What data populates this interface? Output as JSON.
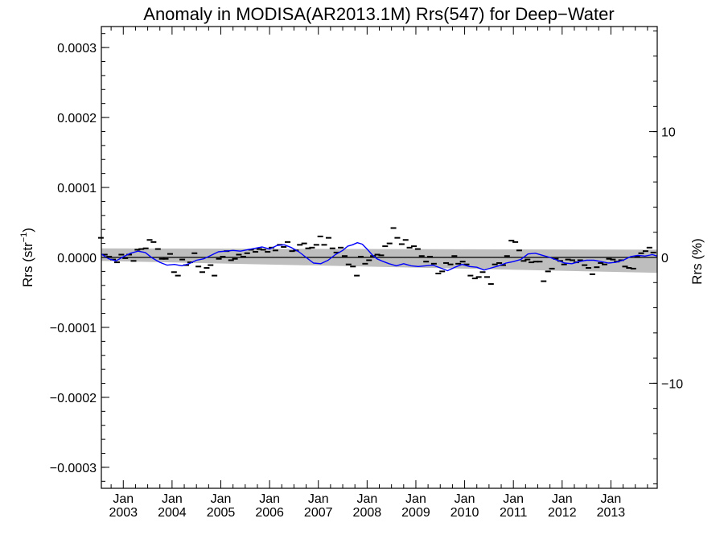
{
  "chart_data": {
    "type": "line",
    "title": "Anomaly in MODISA(AR2013.1M) Rrs(547) for Deep−Water",
    "ylabel_base": "Rrs (str",
    "ylabel_sup": "−1",
    "ylabel_close": ")",
    "y2label": "Rrs (%)",
    "xlim": [
      2002.55,
      2013.95
    ],
    "ylim": [
      -0.00033,
      0.00033
    ],
    "y2lim": [
      -18.35,
      18.35
    ],
    "yticks": [
      {
        "v": 0.0003,
        "label": "0.0003"
      },
      {
        "v": 0.0002,
        "label": "0.0002"
      },
      {
        "v": 0.0001,
        "label": "0.0001"
      },
      {
        "v": 0.0,
        "label": "0.0000"
      },
      {
        "v": -0.0001,
        "label": "−0.0001"
      },
      {
        "v": -0.0002,
        "label": "−0.0002"
      },
      {
        "v": -0.0003,
        "label": "−0.0003"
      }
    ],
    "y2ticks": [
      {
        "v": 10,
        "label": "10"
      },
      {
        "v": 0,
        "label": "0"
      },
      {
        "v": -10,
        "label": "−10"
      }
    ],
    "xticks": [
      {
        "v": 2003.0,
        "month": "Jan",
        "year": "2003"
      },
      {
        "v": 2004.0,
        "month": "Jan",
        "year": "2004"
      },
      {
        "v": 2005.0,
        "month": "Jan",
        "year": "2005"
      },
      {
        "v": 2006.0,
        "month": "Jan",
        "year": "2006"
      },
      {
        "v": 2007.0,
        "month": "Jan",
        "year": "2007"
      },
      {
        "v": 2008.0,
        "month": "Jan",
        "year": "2008"
      },
      {
        "v": 2009.0,
        "month": "Jan",
        "year": "2009"
      },
      {
        "v": 2010.0,
        "month": "Jan",
        "year": "2010"
      },
      {
        "v": 2011.0,
        "month": "Jan",
        "year": "2011"
      },
      {
        "v": 2012.0,
        "month": "Jan",
        "year": "2012"
      },
      {
        "v": 2013.0,
        "month": "Jan",
        "year": "2013"
      }
    ],
    "band": {
      "x": [
        2002.55,
        2013.95
      ],
      "upper": [
        1.3e-05,
        1.1e-05
      ],
      "lower": [
        -5e-06,
        -2.2e-05
      ],
      "color": "#bebebe"
    },
    "zero_line": 0.0,
    "monthly_points": {
      "color": "#000000",
      "x": [
        2002.54,
        2002.62,
        2002.71,
        2002.79,
        2002.87,
        2002.96,
        2003.04,
        2003.12,
        2003.21,
        2003.29,
        2003.37,
        2003.46,
        2003.54,
        2003.62,
        2003.71,
        2003.79,
        2003.87,
        2003.96,
        2004.04,
        2004.12,
        2004.21,
        2004.29,
        2004.37,
        2004.46,
        2004.54,
        2004.62,
        2004.71,
        2004.79,
        2004.87,
        2004.96,
        2005.04,
        2005.12,
        2005.21,
        2005.29,
        2005.37,
        2005.46,
        2005.54,
        2005.62,
        2005.71,
        2005.79,
        2005.87,
        2005.96,
        2006.04,
        2006.12,
        2006.21,
        2006.29,
        2006.37,
        2006.46,
        2006.54,
        2006.62,
        2006.71,
        2006.79,
        2006.87,
        2006.96,
        2007.04,
        2007.12,
        2007.21,
        2007.29,
        2007.37,
        2007.46,
        2007.54,
        2007.62,
        2007.71,
        2007.79,
        2007.87,
        2007.96,
        2008.04,
        2008.12,
        2008.21,
        2008.29,
        2008.37,
        2008.46,
        2008.54,
        2008.62,
        2008.71,
        2008.79,
        2008.87,
        2008.96,
        2009.04,
        2009.12,
        2009.21,
        2009.29,
        2009.37,
        2009.46,
        2009.54,
        2009.62,
        2009.71,
        2009.79,
        2009.87,
        2009.96,
        2010.04,
        2010.12,
        2010.21,
        2010.29,
        2010.37,
        2010.46,
        2010.54,
        2010.62,
        2010.71,
        2010.79,
        2010.87,
        2010.96,
        2011.04,
        2011.12,
        2011.21,
        2011.29,
        2011.37,
        2011.46,
        2011.54,
        2011.62,
        2011.71,
        2011.79,
        2011.87,
        2011.96,
        2012.04,
        2012.12,
        2012.21,
        2012.29,
        2012.37,
        2012.46,
        2012.54,
        2012.62,
        2012.71,
        2012.79,
        2012.87,
        2012.96,
        2013.04,
        2013.12,
        2013.21,
        2013.29,
        2013.37,
        2013.46,
        2013.54,
        2013.62,
        2013.71,
        2013.79,
        2013.87
      ],
      "y": [
        2.8e-05,
        4e-06,
        1e-06,
        -3e-06,
        -7e-06,
        4e-06,
        -1e-06,
        4e-06,
        -5e-06,
        1.1e-05,
        1.2e-05,
        1.3e-05,
        2.5e-05,
        2.2e-05,
        1.2e-05,
        -2e-06,
        -2e-06,
        5e-06,
        -2.1e-05,
        -2.6e-05,
        -3e-06,
        -1.1e-05,
        -7e-06,
        6e-06,
        -1.3e-05,
        -2.1e-05,
        -1.5e-05,
        -1.1e-05,
        -2.6e-05,
        -2e-06,
        1e-06,
        9e-06,
        -4e-06,
        -2e-06,
        4e-06,
        1e-06,
        6e-06,
        1.1e-05,
        8e-06,
        1.2e-05,
        1.1e-05,
        8e-06,
        1.4e-05,
        1e-05,
        1.8e-05,
        1.5e-05,
        2.2e-05,
        9e-06,
        1e-05,
        1.8e-05,
        2e-05,
        1.3e-05,
        1.4e-05,
        1.8e-05,
        3e-05,
        1.8e-05,
        2.8e-05,
        1.3e-05,
        7e-06,
        1.4e-05,
        2e-06,
        -1e-05,
        -1.3e-05,
        -2.6e-05,
        1e-06,
        -9e-06,
        -4e-06,
        2e-06,
        4e-06,
        3e-06,
        1.6e-05,
        2e-05,
        4.2e-05,
        2.8e-05,
        1.9e-05,
        2.5e-05,
        1.4e-05,
        1.6e-05,
        1.2e-05,
        2e-06,
        -6e-06,
        1e-06,
        -9e-06,
        -2.3e-05,
        -2e-05,
        -8e-06,
        -1e-05,
        2e-06,
        -9e-06,
        -6e-06,
        -1e-05,
        -2.6e-05,
        -3e-05,
        -2.8e-05,
        -2.1e-05,
        -2.8e-05,
        -3.8e-05,
        -1e-05,
        -8e-06,
        -1.1e-05,
        2e-06,
        2.4e-05,
        2.2e-05,
        1e-05,
        -5e-06,
        -3e-06,
        -7e-06,
        -6e-06,
        -6e-06,
        -3.4e-05,
        -2e-05,
        -1.6e-05,
        -2e-06,
        -5e-06,
        -1e-05,
        -3e-06,
        -4e-06,
        -7e-06,
        -4e-06,
        -1.1e-05,
        -1.5e-05,
        -2.4e-05,
        -1.4e-05,
        -8e-06,
        -1e-05,
        -2e-06,
        -3e-06,
        -6e-06,
        -4e-06,
        -1.3e-05,
        -1.5e-05,
        -1.6e-05,
        1e-06,
        6e-06,
        9e-06,
        1.4e-05,
        7e-06
      ]
    },
    "smoothed_series": {
      "color": "#0000ff",
      "x": [
        2002.55,
        2002.7,
        2002.85,
        2003.0,
        2003.15,
        2003.3,
        2003.45,
        2003.6,
        2003.75,
        2003.9,
        2004.05,
        2004.2,
        2004.35,
        2004.5,
        2004.65,
        2004.8,
        2004.95,
        2005.1,
        2005.25,
        2005.4,
        2005.55,
        2005.7,
        2005.85,
        2006.0,
        2006.15,
        2006.3,
        2006.45,
        2006.6,
        2006.75,
        2006.9,
        2007.05,
        2007.2,
        2007.35,
        2007.5,
        2007.6,
        2007.7,
        2007.8,
        2007.9,
        2008.0,
        2008.1,
        2008.2,
        2008.3,
        2008.45,
        2008.6,
        2008.75,
        2008.9,
        2009.05,
        2009.2,
        2009.35,
        2009.5,
        2009.65,
        2009.8,
        2009.95,
        2010.1,
        2010.25,
        2010.4,
        2010.55,
        2010.7,
        2010.85,
        2011.0,
        2011.15,
        2011.3,
        2011.45,
        2011.6,
        2011.75,
        2011.9,
        2012.05,
        2012.2,
        2012.35,
        2012.5,
        2012.65,
        2012.8,
        2012.95,
        2013.1,
        2013.25,
        2013.4,
        2013.55,
        2013.7,
        2013.85,
        2013.95
      ],
      "y": [
        5e-06,
        -2e-06,
        -5e-06,
        1e-06,
        6e-06,
        9e-06,
        7e-06,
        -1e-06,
        -7e-06,
        -1.1e-05,
        -1e-05,
        -1.2e-05,
        -9e-06,
        -4e-06,
        -2e-06,
        3e-06,
        8e-06,
        9e-06,
        1e-05,
        9e-06,
        1.1e-05,
        1.3e-05,
        1.5e-05,
        1.2e-05,
        1.7e-05,
        1.8e-05,
        1.4e-05,
        8e-06,
        0.0,
        -8e-06,
        -9e-06,
        -4e-06,
        4e-06,
        1e-05,
        1.6e-05,
        1.8e-05,
        2.1e-05,
        1.9e-05,
        1.2e-05,
        4e-06,
        -2e-06,
        -5e-06,
        -9e-06,
        -1.2e-05,
        -9e-06,
        -1.2e-05,
        -1.3e-05,
        -1.2e-05,
        -1.1e-05,
        -1.5e-05,
        -1.9e-05,
        -1.4e-05,
        -1e-05,
        -1.3e-05,
        -1.4e-05,
        -1.8e-05,
        -1.5e-05,
        -1.2e-05,
        -8e-06,
        -6e-06,
        -3e-06,
        5e-06,
        6e-06,
        3e-06,
        0.0,
        -4e-06,
        -8e-06,
        -9e-06,
        -6e-06,
        -4e-06,
        -4e-06,
        -6e-06,
        -8e-06,
        -7e-06,
        -4e-06,
        1e-06,
        3e-06,
        2e-06,
        4e-06,
        2e-06
      ]
    }
  }
}
